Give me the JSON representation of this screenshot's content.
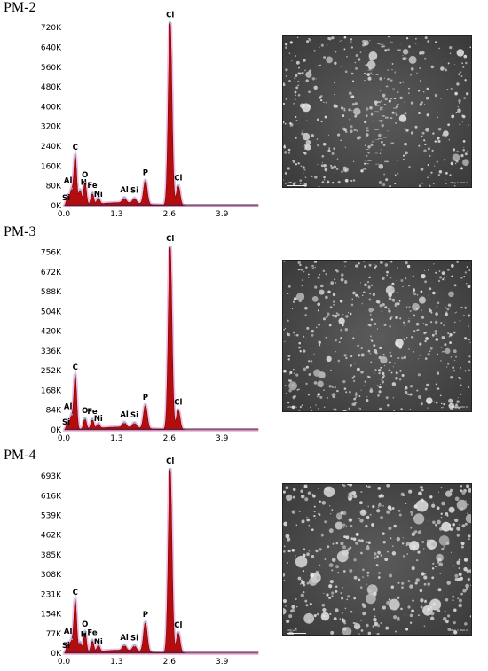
{
  "chart_data": [
    {
      "type": "area",
      "panel_label": "PM-2",
      "x_ticks": [
        "0.0",
        "1.3",
        "2.6",
        "3.9"
      ],
      "xlim": [
        0,
        5.1
      ],
      "y_ticks": [
        "0K",
        "80K",
        "160K",
        "240K",
        "320K",
        "400K",
        "480K",
        "560K",
        "640K",
        "720K"
      ],
      "ylim": [
        0,
        760000
      ],
      "peaks": [
        {
          "label": "Si",
          "x": 0.1,
          "y": 40000
        },
        {
          "label": "Al",
          "x": 0.19,
          "y": 60000
        },
        {
          "label": "C",
          "x": 0.28,
          "y": 200000
        },
        {
          "label": "N",
          "x": 0.4,
          "y": 60000
        },
        {
          "label": "O",
          "x": 0.52,
          "y": 90000
        },
        {
          "label": "Fe",
          "x": 0.7,
          "y": 45000
        },
        {
          "label": "Ni",
          "x": 0.85,
          "y": 25000
        },
        {
          "label": "Al",
          "x": 1.49,
          "y": 20000
        },
        {
          "label": "Si",
          "x": 1.74,
          "y": 20000
        },
        {
          "label": "P",
          "x": 2.01,
          "y": 95000
        },
        {
          "label": "Cl",
          "x": 2.62,
          "y": 740000
        },
        {
          "label": "Cl",
          "x": 2.82,
          "y": 80000
        }
      ],
      "sem_scale": "100 µm",
      "sem_meta": "Mag = 500 X"
    },
    {
      "type": "area",
      "panel_label": "PM-3",
      "x_ticks": [
        "0.0",
        "1.3",
        "2.6",
        "3.9"
      ],
      "xlim": [
        0,
        5.1
      ],
      "y_ticks": [
        "0K",
        "84K",
        "168K",
        "252K",
        "336K",
        "420K",
        "504K",
        "588K",
        "672K",
        "756K"
      ],
      "ylim": [
        0,
        800000
      ],
      "peaks": [
        {
          "label": "Si",
          "x": 0.1,
          "y": 35000
        },
        {
          "label": "Al",
          "x": 0.19,
          "y": 55000
        },
        {
          "label": "C",
          "x": 0.28,
          "y": 230000
        },
        {
          "label": "O",
          "x": 0.52,
          "y": 45000
        },
        {
          "label": "Fe",
          "x": 0.7,
          "y": 40000
        },
        {
          "label": "Ni",
          "x": 0.85,
          "y": 20000
        },
        {
          "label": "Al",
          "x": 1.49,
          "y": 20000
        },
        {
          "label": "Si",
          "x": 1.74,
          "y": 20000
        },
        {
          "label": "P",
          "x": 2.01,
          "y": 100000
        },
        {
          "label": "Cl",
          "x": 2.62,
          "y": 780000
        },
        {
          "label": "Cl",
          "x": 2.82,
          "y": 85000
        }
      ],
      "sem_scale": "100 µm",
      "sem_meta": "Mag = 500 X"
    },
    {
      "type": "area",
      "panel_label": "PM-4",
      "x_ticks": [
        "0.0",
        "1.3",
        "2.6",
        "3.9"
      ],
      "xlim": [
        0,
        5.1
      ],
      "y_ticks": [
        "0K",
        "77K",
        "154K",
        "231K",
        "308K",
        "385K",
        "462K",
        "539K",
        "616K",
        "693K"
      ],
      "ylim": [
        0,
        735000
      ],
      "peaks": [
        {
          "label": "Al",
          "x": 0.19,
          "y": 45000
        },
        {
          "label": "Si",
          "x": 0.1,
          "y": 40000
        },
        {
          "label": "C",
          "x": 0.28,
          "y": 205000
        },
        {
          "label": "N",
          "x": 0.4,
          "y": 40000
        },
        {
          "label": "O",
          "x": 0.52,
          "y": 80000
        },
        {
          "label": "Fe",
          "x": 0.7,
          "y": 45000
        },
        {
          "label": "Ni",
          "x": 0.85,
          "y": 25000
        },
        {
          "label": "Al",
          "x": 1.49,
          "y": 20000
        },
        {
          "label": "Si",
          "x": 1.74,
          "y": 20000
        },
        {
          "label": "P",
          "x": 2.01,
          "y": 115000
        },
        {
          "label": "Cl",
          "x": 2.62,
          "y": 720000
        },
        {
          "label": "Cl",
          "x": 2.82,
          "y": 80000
        }
      ],
      "sem_scale": "100 µm",
      "sem_meta": "Mag = 500 X"
    }
  ],
  "colors": {
    "fill": "#b50d0d",
    "fill_dark": "#7a0000",
    "halo": "#e6a6d6",
    "outline": "#2a2a6a",
    "axis_text": "#000000",
    "marker": "#66c2e0"
  }
}
